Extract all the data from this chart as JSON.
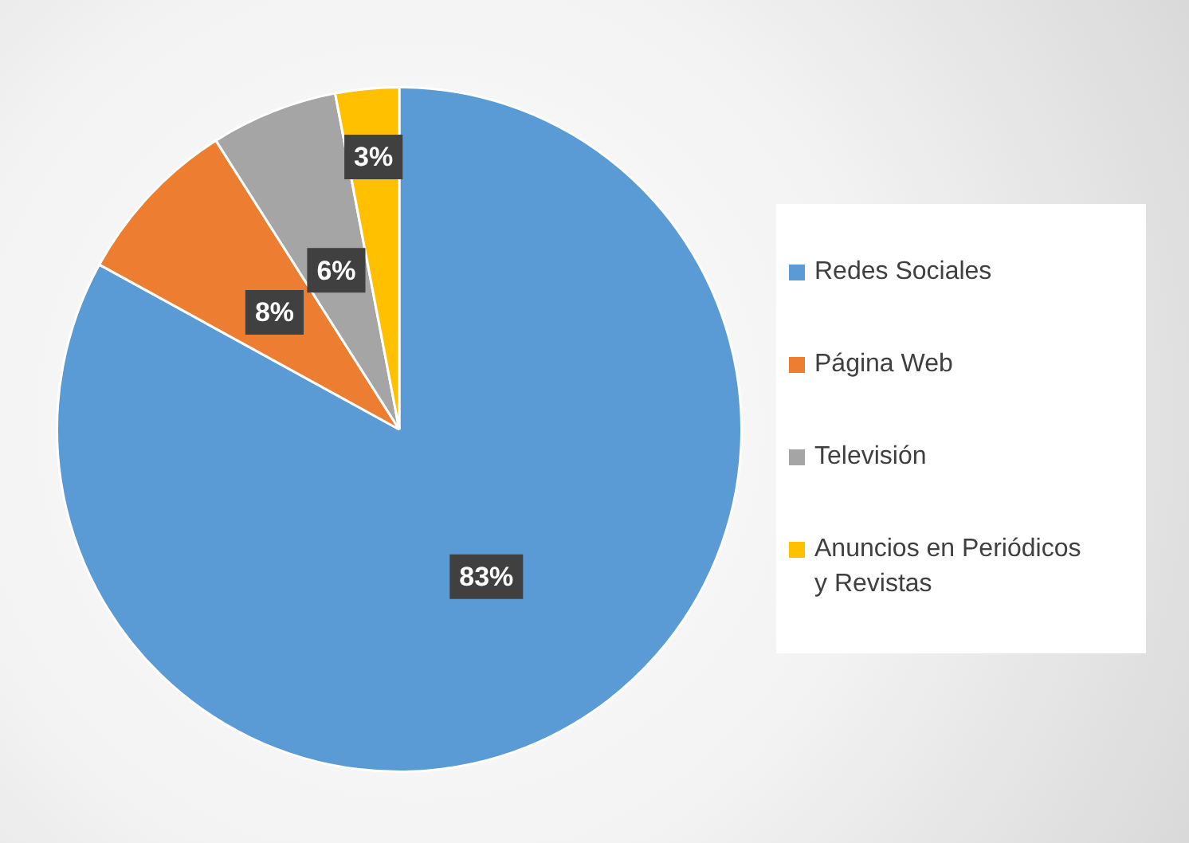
{
  "chart_data": {
    "type": "pie",
    "categories": [
      "Redes Sociales",
      "Página Web",
      "Televisión",
      "Anuncios en Periódicos y Revistas"
    ],
    "values": [
      83,
      8,
      6,
      3
    ],
    "colors": [
      "#5b9bd5",
      "#ed7d31",
      "#a5a5a5",
      "#ffc000"
    ],
    "value_labels": [
      "83%",
      "8%",
      "6%",
      "3%"
    ],
    "legend": "right"
  }
}
